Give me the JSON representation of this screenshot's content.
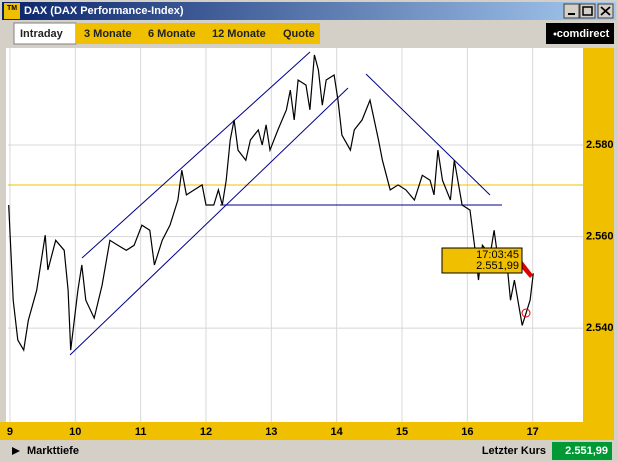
{
  "window": {
    "title": "DAX (DAX Performance-Index)",
    "icon": "TM",
    "tabs": [
      "Intraday",
      "3 Monate",
      "6 Monate",
      "12 Monate",
      "Quote"
    ],
    "brand": "comdirect"
  },
  "chart_data": {
    "type": "line",
    "color": "#000000",
    "x": [
      8.98,
      9.05,
      9.12,
      9.21,
      9.28,
      9.41,
      9.54,
      9.58,
      9.7,
      9.83,
      9.89,
      9.93,
      10.04,
      10.1,
      10.16,
      10.29,
      10.41,
      10.53,
      10.65,
      10.78,
      10.9,
      11.02,
      11.14,
      11.21,
      11.33,
      11.45,
      11.57,
      11.63,
      11.7,
      11.82,
      11.94,
      12.0,
      12.12,
      12.19,
      12.25,
      12.31,
      12.37,
      12.43,
      12.49,
      12.61,
      12.68,
      12.8,
      12.86,
      12.92,
      12.98,
      13.1,
      13.23,
      13.29,
      13.35,
      13.41,
      13.53,
      13.59,
      13.66,
      13.72,
      13.78,
      13.84,
      13.96,
      14.02,
      14.08,
      14.21,
      14.27,
      14.39,
      14.51,
      14.64,
      14.7,
      14.82,
      14.94,
      15.06,
      15.19,
      15.31,
      15.43,
      15.49,
      15.55,
      15.62,
      15.74,
      15.8,
      15.92,
      16.04,
      16.11,
      16.17,
      16.23,
      16.35,
      16.41,
      16.47,
      16.6,
      16.66,
      16.72,
      16.84,
      16.96,
      17.01
    ],
    "values": [
      2566.9,
      2546.1,
      2537.4,
      2535.2,
      2541.7,
      2548.3,
      2560.3,
      2552.7,
      2559.2,
      2557.0,
      2548.3,
      2535.2,
      2548.3,
      2553.8,
      2546.1,
      2542.2,
      2549.4,
      2559.2,
      2558.1,
      2557.0,
      2558.1,
      2562.5,
      2561.4,
      2553.8,
      2559.2,
      2562.5,
      2568.0,
      2574.5,
      2569.1,
      2570.2,
      2571.3,
      2566.9,
      2566.9,
      2570.2,
      2566.9,
      2572.3,
      2581.1,
      2585.5,
      2578.9,
      2576.7,
      2581.1,
      2583.3,
      2580.0,
      2584.4,
      2578.9,
      2583.3,
      2587.7,
      2592.0,
      2585.5,
      2594.2,
      2593.1,
      2587.7,
      2599.7,
      2596.4,
      2588.7,
      2594.2,
      2595.3,
      2589.8,
      2582.2,
      2578.9,
      2583.3,
      2585.5,
      2589.8,
      2581.1,
      2576.7,
      2570.2,
      2571.3,
      2570.2,
      2568.0,
      2573.4,
      2572.3,
      2569.1,
      2578.9,
      2572.3,
      2568.0,
      2576.7,
      2566.9,
      2565.8,
      2558.1,
      2550.5,
      2558.1,
      2556.0,
      2561.4,
      2554.9,
      2554.9,
      2546.1,
      2550.5,
      2540.6,
      2546.1,
      2551.99
    ],
    "xlim": [
      8.97,
      17.77
    ],
    "xticks": [
      9,
      10,
      11,
      12,
      13,
      14,
      15,
      16,
      17
    ],
    "ylim": [
      2519.5,
      2601.2
    ],
    "yticks": [
      {
        "value": 2540,
        "label": "2.540"
      },
      {
        "value": 2560,
        "label": "2.560"
      },
      {
        "value": 2580,
        "label": "2.580"
      }
    ],
    "grid": true,
    "tooltip_time": "17:03:45",
    "tooltip_price": "2.551,99"
  },
  "footer": {
    "left": "Markttiefe",
    "label": "Letzter Kurs",
    "price": "2.551,99"
  }
}
